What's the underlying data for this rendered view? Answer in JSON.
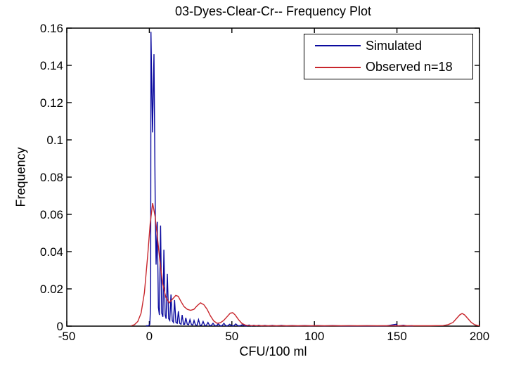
{
  "chart_data": {
    "type": "line",
    "title": "03-Dyes-Clear-Cr-- Frequency Plot",
    "xlabel": "CFU/100 ml",
    "ylabel": "Frequency",
    "xlim": [
      -50,
      200
    ],
    "ylim": [
      0,
      0.16
    ],
    "xticks": [
      -50,
      0,
      50,
      100,
      150,
      200
    ],
    "yticks": [
      0,
      0.02,
      0.04,
      0.06,
      0.08,
      0.1,
      0.12,
      0.14,
      0.16
    ],
    "grid": false,
    "legend_position": "top-right",
    "frame_color": "#000000",
    "series": [
      {
        "name": "Simulated",
        "color": "#0A0A9E",
        "points": [
          [
            -2,
            0.0002
          ],
          [
            -0.5,
            0.0002
          ],
          [
            0.3,
            0.001
          ],
          [
            0.8,
            0.012
          ],
          [
            1.0,
            0.158
          ],
          [
            1.9,
            0.104
          ],
          [
            2.8,
            0.146
          ],
          [
            3.6,
            0.06
          ],
          [
            4.1,
            0.033
          ],
          [
            4.8,
            0.056
          ],
          [
            5.5,
            0.01
          ],
          [
            6.1,
            0.006
          ],
          [
            6.8,
            0.054
          ],
          [
            7.5,
            0.007
          ],
          [
            8.2,
            0.005
          ],
          [
            8.8,
            0.041
          ],
          [
            9.6,
            0.006
          ],
          [
            10.2,
            0.004
          ],
          [
            10.9,
            0.028
          ],
          [
            11.7,
            0.004
          ],
          [
            12.4,
            0.003
          ],
          [
            13.1,
            0.017
          ],
          [
            13.9,
            0.003
          ],
          [
            14.6,
            0.002
          ],
          [
            15.3,
            0.014
          ],
          [
            16.1,
            0.002
          ],
          [
            16.9,
            0.0015
          ],
          [
            17.6,
            0.008
          ],
          [
            18.4,
            0.0015
          ],
          [
            19.2,
            0.001
          ],
          [
            19.9,
            0.006
          ],
          [
            20.7,
            0.001
          ],
          [
            21.4,
            0.001
          ],
          [
            22.1,
            0.0045
          ],
          [
            23.0,
            0.001
          ],
          [
            23.8,
            0.0008
          ],
          [
            24.6,
            0.0035
          ],
          [
            25.5,
            0.0008
          ],
          [
            26.3,
            0.0006
          ],
          [
            27.1,
            0.003
          ],
          [
            28.0,
            0.0006
          ],
          [
            28.9,
            0.0005
          ],
          [
            29.8,
            0.0035
          ],
          [
            30.7,
            0.0005
          ],
          [
            31.6,
            0.0004
          ],
          [
            32.6,
            0.0025
          ],
          [
            33.5,
            0.0004
          ],
          [
            34.5,
            0.0003
          ],
          [
            35.5,
            0.002
          ],
          [
            36.5,
            0.0003
          ],
          [
            37.5,
            0.0003
          ],
          [
            38.6,
            0.0015
          ],
          [
            39.6,
            0.0003
          ],
          [
            40.7,
            0.0002
          ],
          [
            41.8,
            0.0012
          ],
          [
            42.9,
            0.0002
          ],
          [
            44.0,
            0.0002
          ],
          [
            45.2,
            0.0015
          ],
          [
            46.3,
            0.0002
          ],
          [
            47.5,
            0.0002
          ],
          [
            48.7,
            0.001
          ],
          [
            49.9,
            0.0002
          ],
          [
            51.1,
            0.0002
          ],
          [
            52.4,
            0.0012
          ],
          [
            53.6,
            0.0002
          ],
          [
            55.0,
            0.0002
          ],
          [
            56.3,
            0.0008
          ],
          [
            57.6,
            0.0002
          ],
          [
            59.0,
            0.0001
          ],
          [
            60.4,
            0.0006
          ],
          [
            61.8,
            0.0001
          ],
          [
            63.3,
            0.0005
          ],
          [
            64.8,
            0.0001
          ],
          [
            66.3,
            0.0005
          ],
          [
            67.8,
            0.0001
          ],
          [
            70.0,
            0.0004
          ],
          [
            72.0,
            0.0001
          ],
          [
            74.5,
            0.0004
          ],
          [
            77.0,
            0.0001
          ],
          [
            80.0,
            0.0004
          ],
          [
            83.0,
            0.0001
          ],
          [
            86.5,
            0.0003
          ],
          [
            90.0,
            0.0001
          ],
          [
            94.0,
            0.0003
          ],
          [
            98.0,
            0.0001
          ],
          [
            102,
            0.0003
          ],
          [
            106,
            0.0001
          ],
          [
            111,
            0.0003
          ],
          [
            116,
            0.0001
          ],
          [
            121,
            0.0002
          ],
          [
            126,
            0.0001
          ],
          [
            132,
            0.0002
          ],
          [
            138,
            0.0001
          ],
          [
            144,
            0.0002
          ],
          [
            149.5,
            0.001
          ],
          [
            150.5,
            0.0001
          ],
          [
            154,
            0.0005
          ],
          [
            156,
            0.0001
          ],
          [
            159,
            0.0002
          ],
          [
            160,
            0.0001
          ]
        ]
      },
      {
        "name": "Observed n=18",
        "color": "#C8262C",
        "points": [
          [
            -11,
            0.0002
          ],
          [
            -9,
            0.0008
          ],
          [
            -7,
            0.0025
          ],
          [
            -5,
            0.007
          ],
          [
            -3,
            0.018
          ],
          [
            -1,
            0.038
          ],
          [
            0.5,
            0.055
          ],
          [
            2,
            0.066
          ],
          [
            3.5,
            0.059
          ],
          [
            5,
            0.047
          ],
          [
            6.5,
            0.034
          ],
          [
            8,
            0.023
          ],
          [
            10,
            0.0155
          ],
          [
            12,
            0.0125
          ],
          [
            14,
            0.0145
          ],
          [
            16,
            0.0165
          ],
          [
            17.5,
            0.016
          ],
          [
            19,
            0.0135
          ],
          [
            21,
            0.0105
          ],
          [
            23,
            0.009
          ],
          [
            25,
            0.0085
          ],
          [
            27,
            0.009
          ],
          [
            29,
            0.011
          ],
          [
            31,
            0.0125
          ],
          [
            33,
            0.0115
          ],
          [
            35,
            0.009
          ],
          [
            37,
            0.0055
          ],
          [
            39,
            0.0028
          ],
          [
            41,
            0.0015
          ],
          [
            43,
            0.0018
          ],
          [
            45,
            0.003
          ],
          [
            47,
            0.005
          ],
          [
            49,
            0.007
          ],
          [
            50.5,
            0.0072
          ],
          [
            52,
            0.006
          ],
          [
            54,
            0.0035
          ],
          [
            56,
            0.0015
          ],
          [
            58,
            0.0006
          ],
          [
            60,
            0.0003
          ],
          [
            70,
            0.0002
          ],
          [
            90,
            0.0002
          ],
          [
            110,
            0.0002
          ],
          [
            130,
            0.0002
          ],
          [
            150,
            0.0002
          ],
          [
            170,
            0.0002
          ],
          [
            178,
            0.0003
          ],
          [
            181,
            0.0008
          ],
          [
            184,
            0.002
          ],
          [
            186,
            0.004
          ],
          [
            188,
            0.006
          ],
          [
            189.5,
            0.0068
          ],
          [
            191,
            0.006
          ],
          [
            193,
            0.004
          ],
          [
            195,
            0.002
          ],
          [
            197,
            0.0008
          ],
          [
            199,
            0.0003
          ],
          [
            200,
            0.0002
          ]
        ]
      }
    ]
  }
}
